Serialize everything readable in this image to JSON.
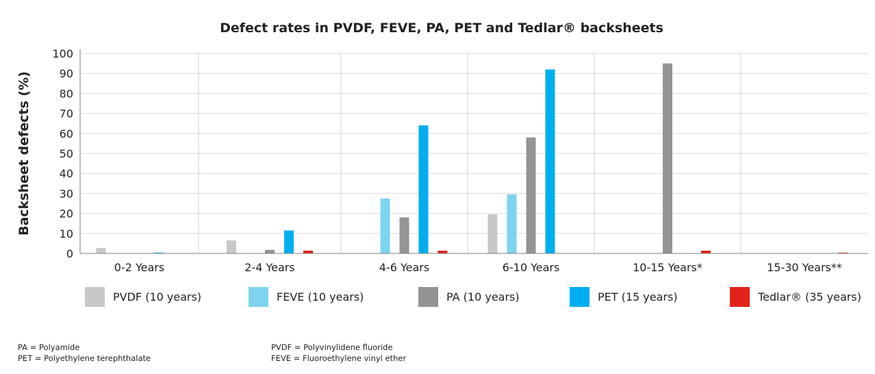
{
  "chart_data": {
    "type": "bar",
    "title": "Defect rates in PVDF, FEVE, PA, PET and Tedlar® backsheets",
    "ylabel": "Backsheet defects (%)",
    "xlabel": "",
    "ylim": [
      0,
      100
    ],
    "yticks": [
      0,
      10,
      20,
      30,
      40,
      50,
      60,
      70,
      80,
      90,
      100
    ],
    "categories": [
      "0-2 Years",
      "2-4 Years",
      "4-6 Years",
      "6-10 Years",
      "10-15 Years*",
      "15-30 Years**"
    ],
    "series": [
      {
        "name": "PVDF (10 years)",
        "color": "#c8c8c8",
        "values": [
          2.7,
          6.5,
          null,
          19.5,
          null,
          null
        ]
      },
      {
        "name": "FEVE (10 years)",
        "color": "#7dd3f0",
        "values": [
          null,
          null,
          27.5,
          29.5,
          null,
          null
        ]
      },
      {
        "name": "PA (10 years)",
        "color": "#949494",
        "values": [
          null,
          1.8,
          18,
          58,
          95,
          null
        ]
      },
      {
        "name": "PET (15 years)",
        "color": "#00aeef",
        "values": [
          0.4,
          11.5,
          64,
          92,
          null,
          null
        ]
      },
      {
        "name": "Tedlar® (35 years)",
        "color": "#e2231a",
        "values": [
          null,
          1.4,
          1.4,
          null,
          1.4,
          0.4
        ]
      }
    ],
    "grid": true,
    "legend_position": "bottom"
  },
  "footnotes": {
    "left": [
      "PA = Polyamide",
      "PET = Polyethylene terephthalate"
    ],
    "right": [
      "PVDF = Polyvinylidene fluoride",
      "FEVE = Fluoroethylene vinyl ether"
    ]
  }
}
